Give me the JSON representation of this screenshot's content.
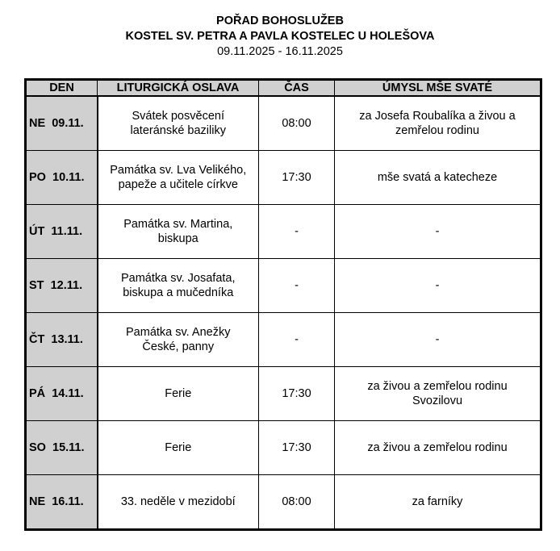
{
  "header": {
    "title": "POŘAD BOHOSLUŽEB",
    "subtitle": "KOSTEL SV. PETRA A PAVLA KOSTELEC U HOLEŠOVA",
    "dates": "09.11.2025 - 16.11.2025"
  },
  "columns": [
    "DEN",
    "LITURGICKÁ OSLAVA",
    "ČAS",
    "ÚMYSL MŠE SVATÉ"
  ],
  "rows": [
    {
      "day": "NE  09.11.",
      "celebration": [
        "Svátek posvěcení",
        "lateránské baziliky"
      ],
      "time": "08:00",
      "intention": [
        "za Josefa Roubalíka a živou a",
        "zemřelou rodinu"
      ]
    },
    {
      "day": "PO  10.11.",
      "celebration": [
        "Památka sv. Lva Velikého,",
        "papeže a učitele církve"
      ],
      "time": "17:30",
      "intention": [
        "mše svatá a katecheze",
        ""
      ]
    },
    {
      "day": "ÚT  11.11.",
      "celebration": [
        "Památka sv. Martina,",
        "biskupa"
      ],
      "time": "-",
      "intention": [
        "-",
        ""
      ]
    },
    {
      "day": "ST  12.11.",
      "celebration": [
        "Památka sv. Josafata,",
        "biskupa a mučedníka"
      ],
      "time": "-",
      "intention": [
        "-",
        ""
      ]
    },
    {
      "day": "ČT  13.11.",
      "celebration": [
        "Památka sv. Anežky",
        "České, panny"
      ],
      "time": "-",
      "intention": [
        "-",
        ""
      ]
    },
    {
      "day": "PÁ  14.11.",
      "celebration": [
        "Ferie",
        ""
      ],
      "time": "17:30",
      "intention": [
        "za živou a zemřelou rodinu",
        "Svozilovu"
      ]
    },
    {
      "day": "SO  15.11.",
      "celebration": [
        "Ferie",
        ""
      ],
      "time": "17:30",
      "intention": [
        "za živou a zemřelou rodinu",
        ""
      ]
    },
    {
      "day": "NE  16.11.",
      "celebration": [
        "33. neděle v mezidobí",
        ""
      ],
      "time": "08:00",
      "intention": [
        "za farníky",
        ""
      ]
    }
  ]
}
